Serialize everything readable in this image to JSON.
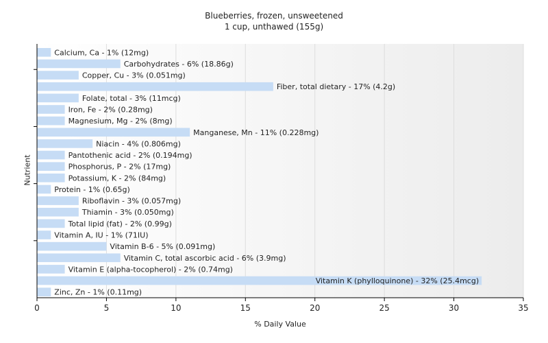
{
  "chart_data": {
    "type": "bar",
    "orientation": "horizontal",
    "title": "Blueberries, frozen, unsweetened",
    "subtitle": "1 cup, unthawed (155g)",
    "xlabel": "% Daily Value",
    "ylabel": "Nutrient",
    "xlim": [
      0,
      35
    ],
    "xticks": [
      "0",
      "5",
      "10",
      "15",
      "20",
      "25",
      "30",
      "35"
    ],
    "grid": true,
    "bar_color": "#c6dcf5",
    "categories": [
      "Calcium, Ca",
      "Carbohydrates",
      "Copper, Cu",
      "Fiber, total dietary",
      "Folate, total",
      "Iron, Fe",
      "Magnesium, Mg",
      "Manganese, Mn",
      "Niacin",
      "Pantothenic acid",
      "Phosphorus, P",
      "Potassium, K",
      "Protein",
      "Riboflavin",
      "Thiamin",
      "Total lipid (fat)",
      "Vitamin A, IU",
      "Vitamin B-6",
      "Vitamin C, total ascorbic acid",
      "Vitamin E (alpha-tocopherol)",
      "Vitamin K (phylloquinone)",
      "Zinc, Zn"
    ],
    "values": [
      1,
      6,
      3,
      17,
      3,
      2,
      2,
      11,
      4,
      2,
      2,
      2,
      1,
      3,
      3,
      2,
      1,
      5,
      6,
      2,
      32,
      1
    ],
    "labels": [
      "Calcium, Ca - 1% (12mg)",
      "Carbohydrates - 6% (18.86g)",
      "Copper, Cu - 3% (0.051mg)",
      "Fiber, total dietary - 17% (4.2g)",
      "Folate, total - 3% (11mcg)",
      "Iron, Fe - 2% (0.28mg)",
      "Magnesium, Mg - 2% (8mg)",
      "Manganese, Mn - 11% (0.228mg)",
      "Niacin - 4% (0.806mg)",
      "Pantothenic acid - 2% (0.194mg)",
      "Phosphorus, P - 2% (17mg)",
      "Potassium, K - 2% (84mg)",
      "Protein - 1% (0.65g)",
      "Riboflavin - 3% (0.057mg)",
      "Thiamin - 3% (0.050mg)",
      "Total lipid (fat) - 2% (0.99g)",
      "Vitamin A, IU - 1% (71IU)",
      "Vitamin B-6 - 5% (0.091mg)",
      "Vitamin C, total ascorbic acid - 6% (3.9mg)",
      "Vitamin E (alpha-tocopherol) - 2% (0.74mg)",
      "Vitamin K (phylloquinone) - 32% (25.4mcg)",
      "Zinc, Zn - 1% (0.11mg)"
    ]
  }
}
